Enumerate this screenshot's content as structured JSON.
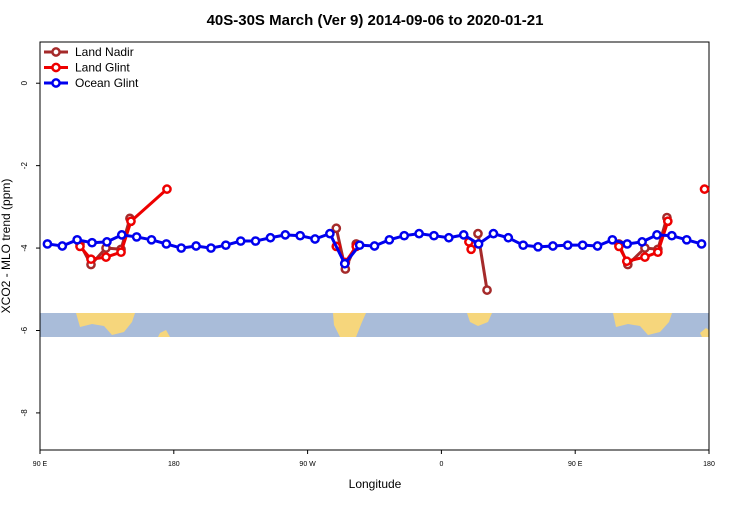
{
  "chart_data": {
    "type": "line",
    "title": "40S-30S March (Ver 9)   2014-09-06 to 2020-01-21",
    "x_label": "Longitude",
    "y_label": "XCO2 - MLO trend (ppm)",
    "xlim": [
      90,
      540
    ],
    "xticks": [
      {
        "value": 90,
        "label": "90 E"
      },
      {
        "value": 180,
        "label": "180"
      },
      {
        "value": 270,
        "label": "90 W"
      },
      {
        "value": 360,
        "label": "0"
      },
      {
        "value": 450,
        "label": "90 E"
      },
      {
        "value": 540,
        "label": "180"
      }
    ],
    "ylim": [
      -8.9,
      1.0
    ],
    "yticks": [
      0,
      -2,
      -4,
      -6,
      -8
    ],
    "legend": "top-left",
    "series": [
      {
        "name": "Land Nadir",
        "color": "#a52a2a",
        "x": [
          116.9,
          124.3,
          134.4,
          144.5,
          150.5,
          null,
          289.3,
          295.4,
          302.7,
          null,
          384.6,
          390.7,
          null,
          479.4,
          485.4,
          496.9,
          505.6,
          511.7
        ],
        "values": [
          -3.9,
          -4.4,
          -4.0,
          -4.03,
          -3.28,
          null,
          -3.52,
          -4.51,
          -3.9,
          null,
          -3.65,
          -5.02,
          null,
          -3.9,
          -4.4,
          -4.0,
          -4.03,
          -3.26
        ]
      },
      {
        "name": "Land Glint",
        "color": "#ee0000",
        "x": [
          116.9,
          124.3,
          134.4,
          144.5,
          151.2,
          175.4,
          null,
          289.3,
          295.4,
          302.7,
          null,
          378.5,
          380.0,
          null,
          479.4,
          484.7,
          496.9,
          505.6,
          512.3,
          null,
          537.0
        ],
        "values": [
          -3.96,
          -4.27,
          -4.22,
          -4.1,
          -3.35,
          -2.57,
          null,
          -3.96,
          -4.35,
          -3.96,
          null,
          -3.85,
          -4.03,
          null,
          -3.96,
          -4.32,
          -4.22,
          -4.1,
          -3.35,
          null,
          -2.57
        ]
      },
      {
        "name": "Ocean Glint",
        "color": "#0000ee",
        "x": [
          95,
          105,
          115,
          125,
          135,
          145,
          155,
          165,
          175,
          185,
          195,
          205,
          215,
          225,
          235,
          245,
          255,
          265,
          275,
          285,
          295,
          305,
          315,
          325,
          335,
          345,
          355,
          365,
          375,
          385,
          395,
          405,
          415,
          425,
          435,
          445,
          455,
          465,
          475,
          485,
          495,
          505,
          515,
          525,
          535
        ],
        "values": [
          -3.9,
          -3.95,
          -3.8,
          -3.87,
          -3.85,
          -3.68,
          -3.73,
          -3.8,
          -3.9,
          -4.0,
          -3.95,
          -4.0,
          -3.93,
          -3.83,
          -3.83,
          -3.75,
          -3.68,
          -3.7,
          -3.78,
          -3.65,
          -4.38,
          -3.93,
          -3.95,
          -3.8,
          -3.7,
          -3.65,
          -3.7,
          -3.75,
          -3.68,
          -3.9,
          -3.65,
          -3.75,
          -3.93,
          -3.97,
          -3.95,
          -3.93,
          -3.93,
          -3.95,
          -3.8,
          -3.9,
          -3.85,
          -3.68,
          -3.7,
          -3.8,
          -3.9
        ]
      }
    ]
  }
}
